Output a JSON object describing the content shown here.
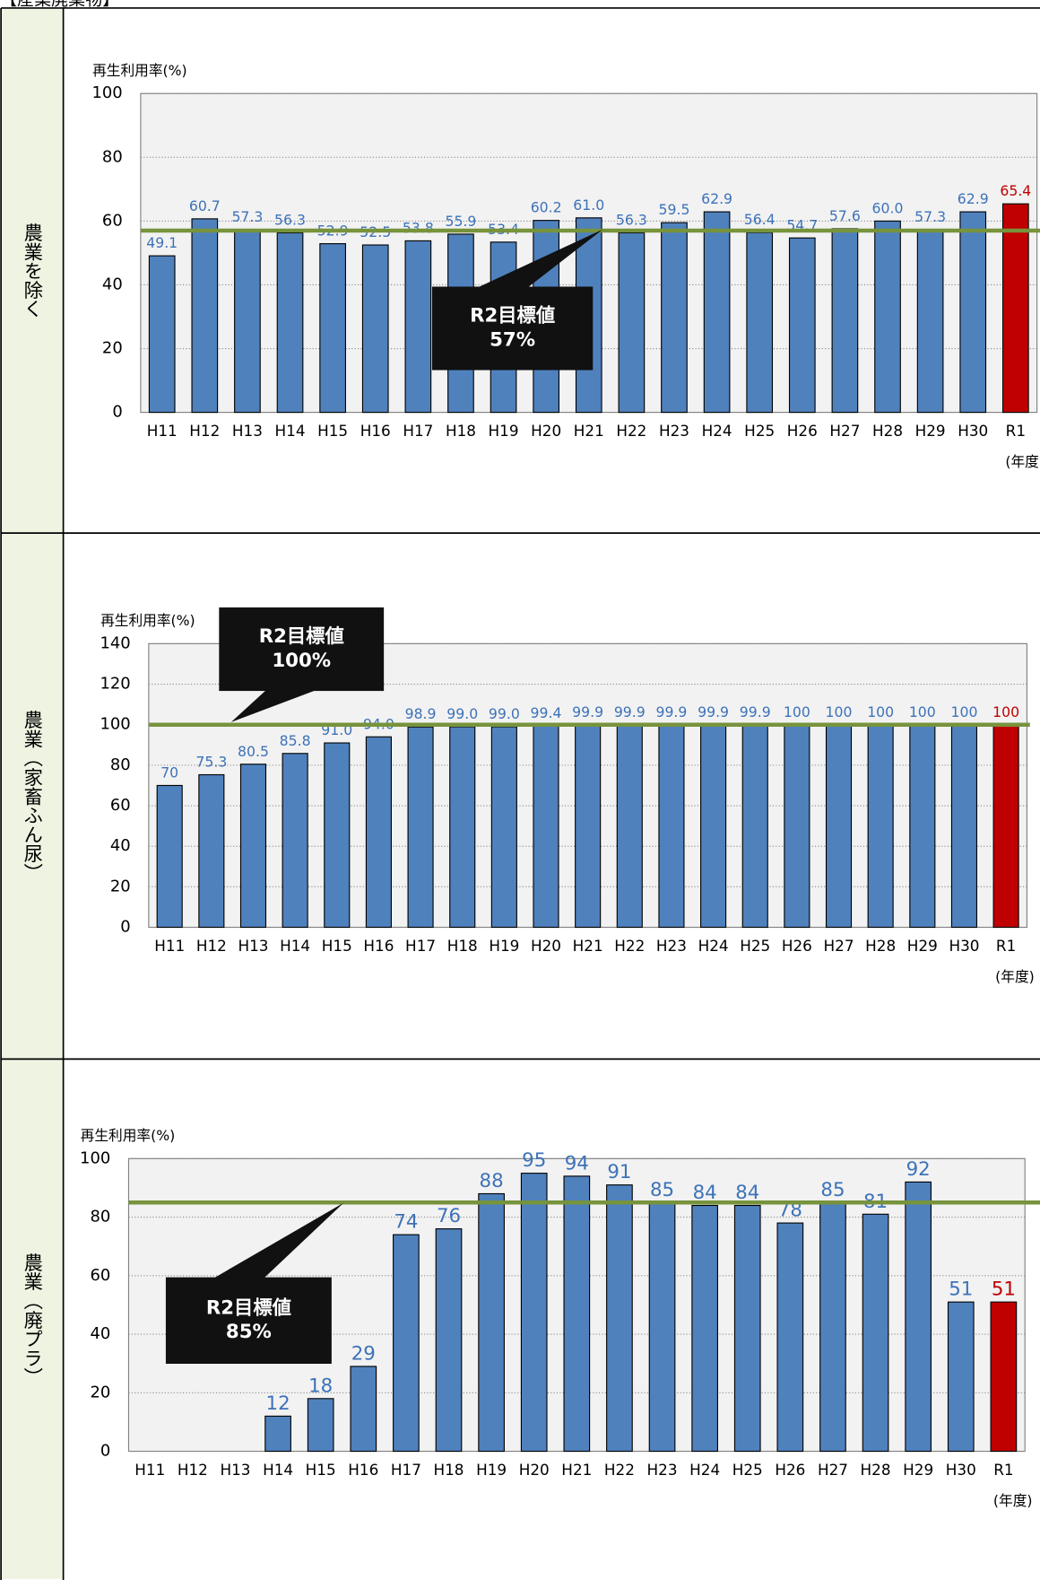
{
  "header": {
    "title": "【産業廃棄物】"
  },
  "chart_data": [
    {
      "type": "bar",
      "section": "農業を除く",
      "ylabel": "再生利用率(%)",
      "xlabel": "(年度)",
      "categories": [
        "H11",
        "H12",
        "H13",
        "H14",
        "H15",
        "H16",
        "H17",
        "H18",
        "H19",
        "H20",
        "H21",
        "H22",
        "H23",
        "H24",
        "H25",
        "H26",
        "H27",
        "H28",
        "H29",
        "H30",
        "R1"
      ],
      "values": [
        49.1,
        60.7,
        57.3,
        56.3,
        52.9,
        52.5,
        53.8,
        55.9,
        53.4,
        60.2,
        61.0,
        56.3,
        59.5,
        62.9,
        56.4,
        54.7,
        57.6,
        60.0,
        57.3,
        62.9,
        65.4
      ],
      "value_labels": [
        "49.1",
        "60.7",
        "57.3",
        "56.3",
        "52.9",
        "52.5",
        "53.8",
        "55.9",
        "53.4",
        "60.2",
        "61.0",
        "56.3",
        "59.5",
        "62.9",
        "56.4",
        "54.7",
        "57.6",
        "60.0",
        "57.3",
        "62.9",
        "65.4"
      ],
      "colors": [
        "#4f81bd",
        "#4f81bd",
        "#4f81bd",
        "#4f81bd",
        "#4f81bd",
        "#4f81bd",
        "#4f81bd",
        "#4f81bd",
        "#4f81bd",
        "#4f81bd",
        "#4f81bd",
        "#4f81bd",
        "#4f81bd",
        "#4f81bd",
        "#4f81bd",
        "#4f81bd",
        "#4f81bd",
        "#4f81bd",
        "#4f81bd",
        "#4f81bd",
        "#c00000"
      ],
      "ylim": [
        0,
        100
      ],
      "yticks": [
        0,
        20,
        40,
        60,
        80,
        100
      ],
      "grid": true,
      "target": 57,
      "target_color": "#77933c",
      "target_label": [
        "R2目標値",
        "57%"
      ]
    },
    {
      "type": "bar",
      "section": "農業（家畜ふん尿）",
      "ylabel": "再生利用率(%)",
      "xlabel": "(年度)",
      "categories": [
        "H11",
        "H12",
        "H13",
        "H14",
        "H15",
        "H16",
        "H17",
        "H18",
        "H19",
        "H20",
        "H21",
        "H22",
        "H23",
        "H24",
        "H25",
        "H26",
        "H27",
        "H28",
        "H29",
        "H30",
        "R1"
      ],
      "values": [
        70,
        75.3,
        80.5,
        85.8,
        91.0,
        94.0,
        98.9,
        99.0,
        99.0,
        99.4,
        99.9,
        99.9,
        99.9,
        99.9,
        99.9,
        100,
        100,
        100,
        100,
        100,
        100
      ],
      "value_labels": [
        "70",
        "75.3",
        "80.5",
        "85.8",
        "91.0",
        "94.0",
        "98.9",
        "99.0",
        "99.0",
        "99.4",
        "99.9",
        "99.9",
        "99.9",
        "99.9",
        "99.9",
        "100",
        "100",
        "100",
        "100",
        "100",
        "100"
      ],
      "colors": [
        "#4f81bd",
        "#4f81bd",
        "#4f81bd",
        "#4f81bd",
        "#4f81bd",
        "#4f81bd",
        "#4f81bd",
        "#4f81bd",
        "#4f81bd",
        "#4f81bd",
        "#4f81bd",
        "#4f81bd",
        "#4f81bd",
        "#4f81bd",
        "#4f81bd",
        "#4f81bd",
        "#4f81bd",
        "#4f81bd",
        "#4f81bd",
        "#4f81bd",
        "#c00000"
      ],
      "ylim": [
        0,
        140
      ],
      "yticks": [
        0,
        20,
        40,
        60,
        80,
        100,
        120,
        140
      ],
      "grid": true,
      "target": 100,
      "target_color": "#77933c",
      "target_label": [
        "R2目標値",
        "100%"
      ]
    },
    {
      "type": "bar",
      "section": "農業（廃プラ）",
      "ylabel": "再生利用率(%)",
      "xlabel": "(年度)",
      "categories": [
        "H11",
        "H12",
        "H13",
        "H14",
        "H15",
        "H16",
        "H17",
        "H18",
        "H19",
        "H20",
        "H21",
        "H22",
        "H23",
        "H24",
        "H25",
        "H26",
        "H27",
        "H28",
        "H29",
        "H30",
        "R1"
      ],
      "values": [
        null,
        null,
        null,
        12,
        18,
        29,
        74,
        76,
        88,
        95,
        94,
        91,
        85,
        84,
        84,
        78,
        85,
        81,
        92,
        51,
        51
      ],
      "colors": [
        "#4f81bd",
        "#4f81bd",
        "#4f81bd",
        "#4f81bd",
        "#4f81bd",
        "#4f81bd",
        "#4f81bd",
        "#4f81bd",
        "#4f81bd",
        "#4f81bd",
        "#4f81bd",
        "#4f81bd",
        "#4f81bd",
        "#4f81bd",
        "#4f81bd",
        "#4f81bd",
        "#4f81bd",
        "#4f81bd",
        "#4f81bd",
        "#4f81bd",
        "#c00000"
      ],
      "ylim": [
        0,
        100
      ],
      "yticks": [
        0,
        20,
        40,
        60,
        80,
        100
      ],
      "grid": true,
      "target": 85,
      "target_color": "#77933c",
      "target_label": [
        "R2目標値",
        "85%"
      ]
    }
  ]
}
